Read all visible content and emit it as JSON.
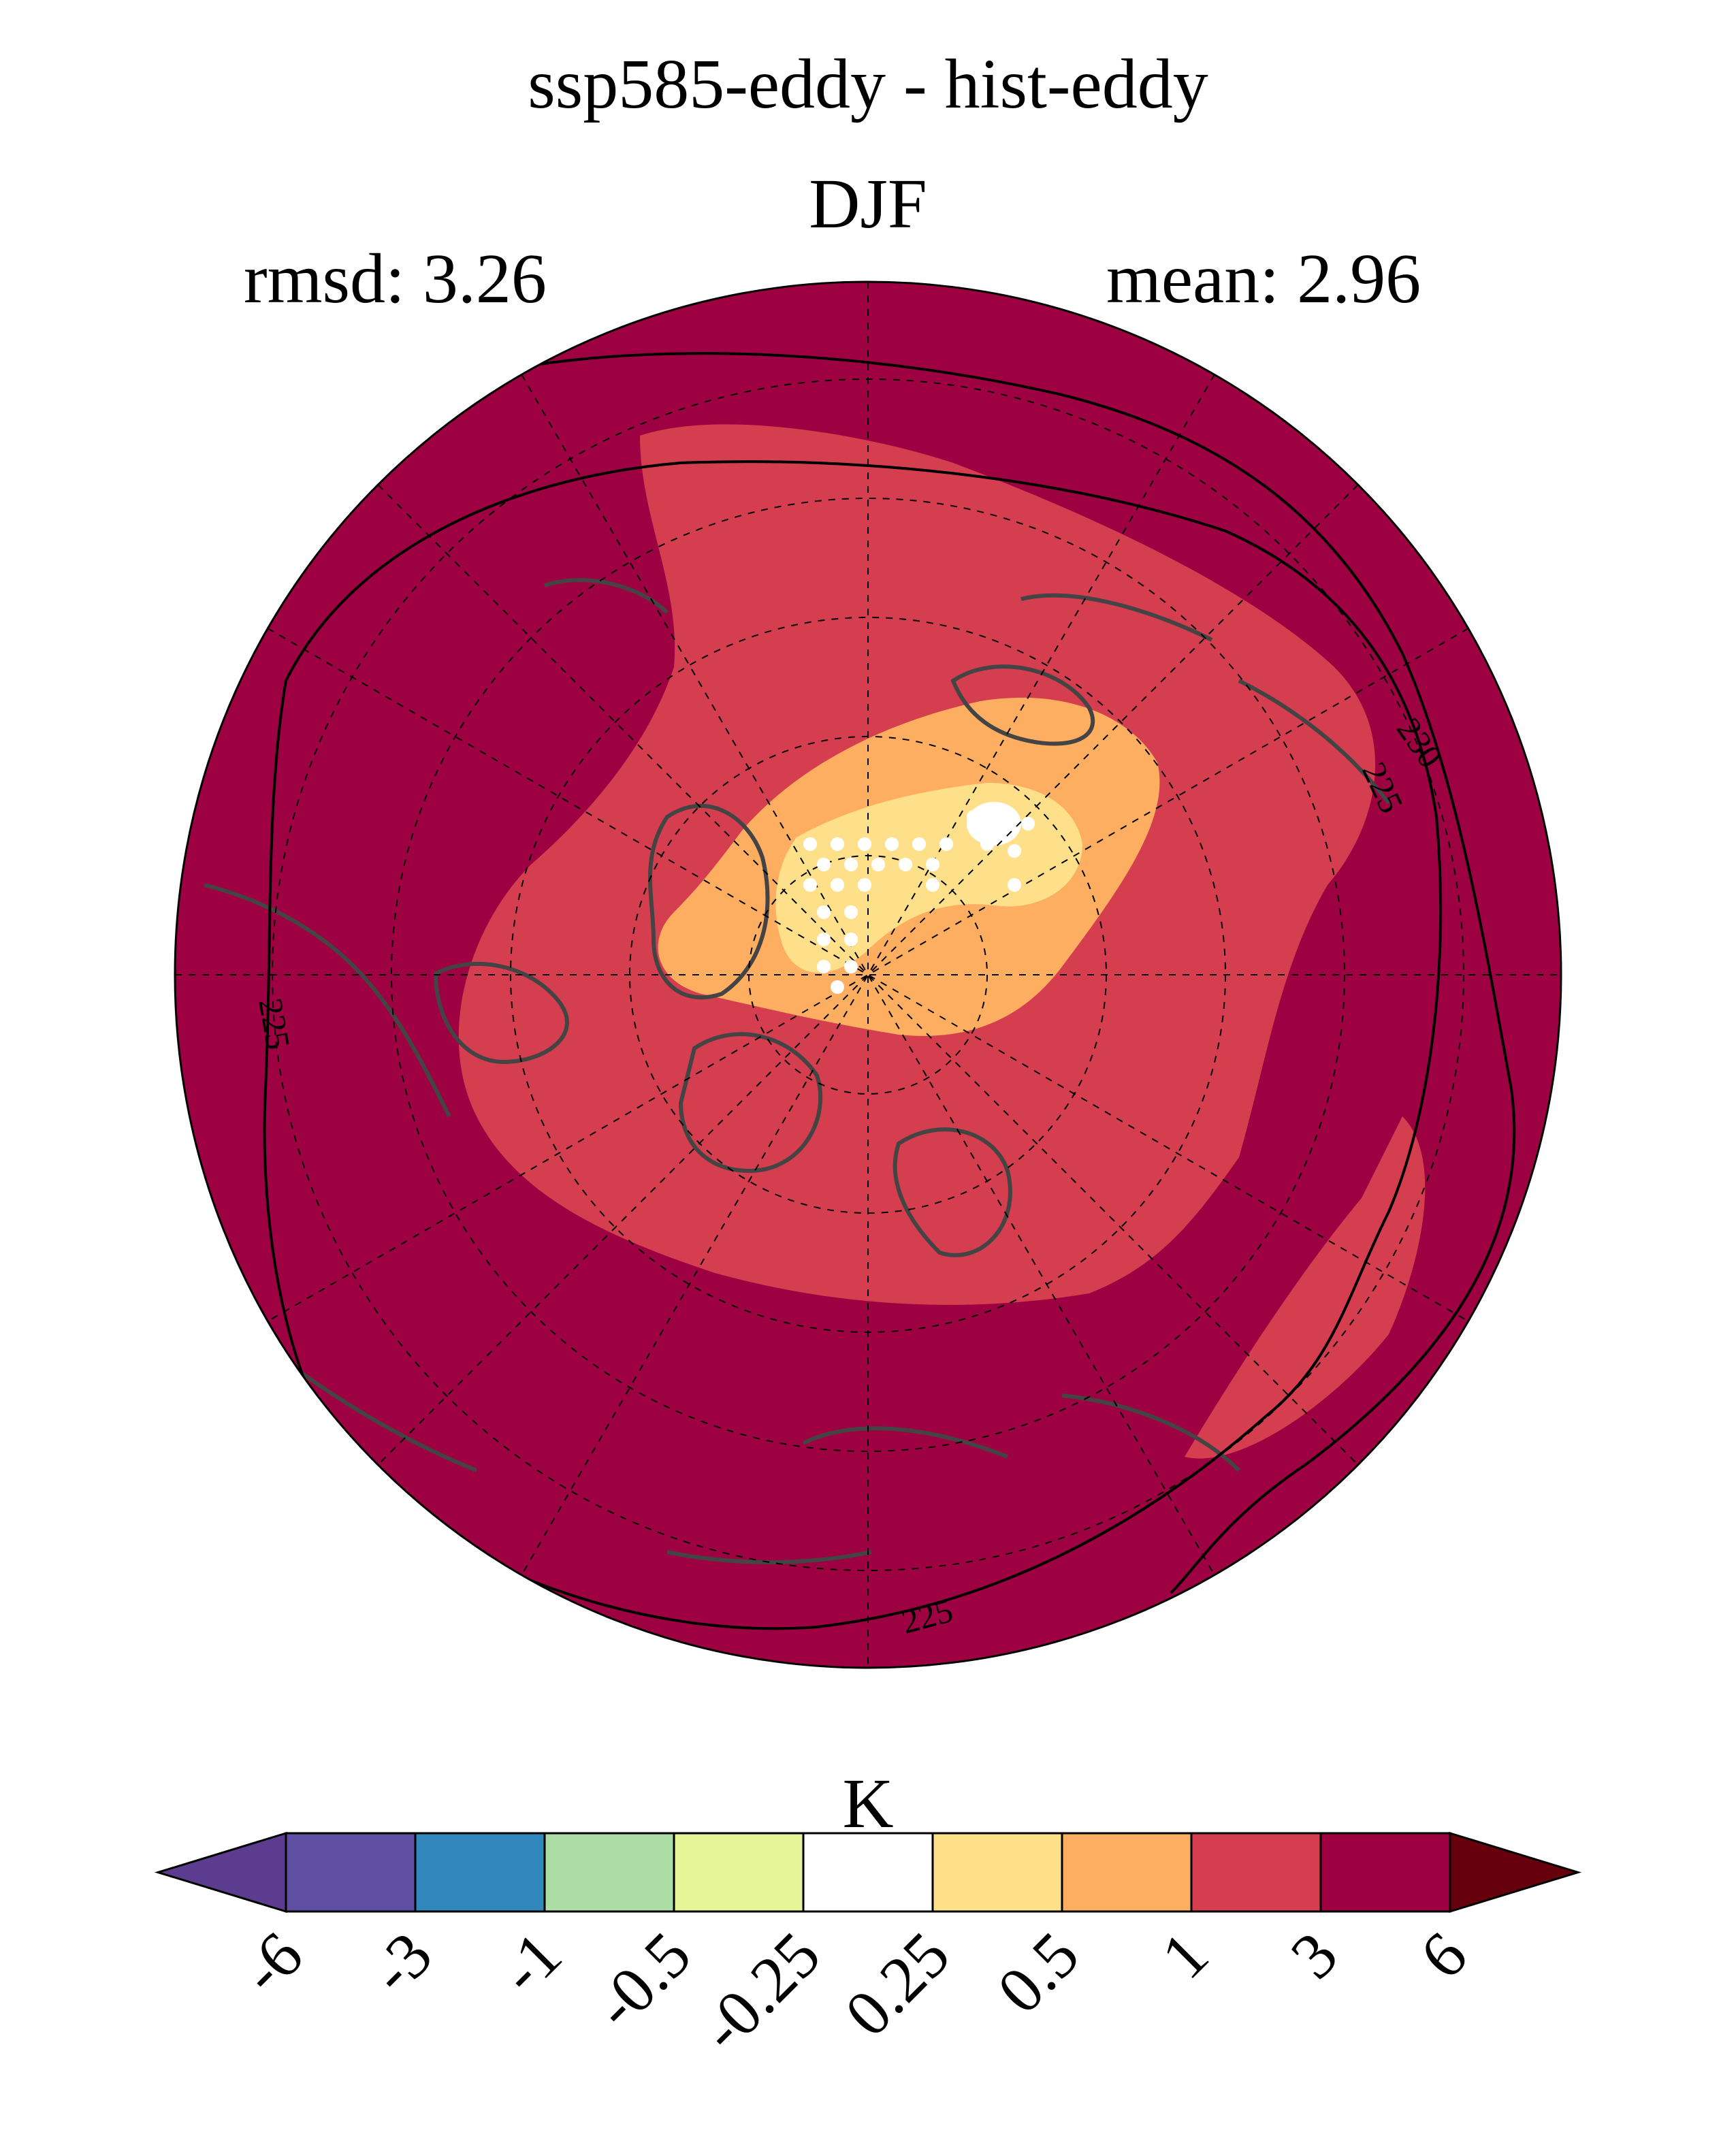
{
  "figure": {
    "title": "ssp585-eddy - hist-eddy",
    "season": "DJF",
    "rmsd_text": "rmsd: 3.26",
    "mean_text": "mean: 2.96",
    "unit": "K"
  },
  "map": {
    "projection": "north-polar-stereographic",
    "contours": [
      {
        "label": "225",
        "style": "solid-black"
      },
      {
        "label": "230",
        "style": "solid-black"
      }
    ],
    "contour_label_instances": [
      "225",
      "225",
      "225",
      "230"
    ],
    "fill_levels": {
      "outer": "#9e0142",
      "ring": "#d53e4f",
      "inner": "#fdae61",
      "core": "#fee08b",
      "center": "#ffffff"
    },
    "coastline_color": "#444444",
    "stippling": "white dots mark the region near the pole"
  },
  "colorbar": {
    "ticks": [
      "-6",
      "-3",
      "-1",
      "-0.5",
      "-0.25",
      "0.25",
      "0.5",
      "1",
      "3",
      "6"
    ],
    "colors": [
      "#5e4fa2",
      "#3288bd",
      "#abdda4",
      "#e6f598",
      "#ffffff",
      "#fee08b",
      "#fdae61",
      "#d53e4f",
      "#9e0142"
    ],
    "under_color": "#5b3c8f",
    "over_color": "#67000d"
  }
}
